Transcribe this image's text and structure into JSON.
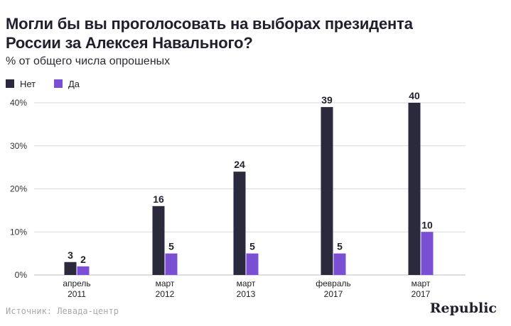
{
  "header": {
    "title_line1": "Могли бы вы проголосовать на выборах президента",
    "title_line2": "России за Алексея Навального?",
    "subtitle": "% от общего числа опрошеных"
  },
  "footer": {
    "source": "Источник: Левада-центр",
    "brand": "Republic"
  },
  "chart_data": {
    "type": "bar",
    "title": "Могли бы вы проголосовать на выборах президента России за Алексея Навального?",
    "subtitle": "% от общего числа опрошеных",
    "categories": [
      {
        "line1": "апрель",
        "line2": "2011"
      },
      {
        "line1": "март",
        "line2": "2012"
      },
      {
        "line1": "март",
        "line2": "2013"
      },
      {
        "line1": "февраль",
        "line2": "2017"
      },
      {
        "line1": "март",
        "line2": "2017"
      }
    ],
    "series": [
      {
        "name": "Нет",
        "color": "#2b2a3d",
        "values": [
          3,
          16,
          24,
          39,
          40
        ]
      },
      {
        "name": "Да",
        "color": "#7b4fd4",
        "values": [
          2,
          5,
          5,
          5,
          10
        ]
      }
    ],
    "yticks": [
      "0%",
      "10%",
      "20%",
      "30%",
      "40%"
    ],
    "ylim": [
      0,
      40
    ],
    "xlabel": "",
    "ylabel": "",
    "grid": true,
    "legend": "top-left"
  }
}
